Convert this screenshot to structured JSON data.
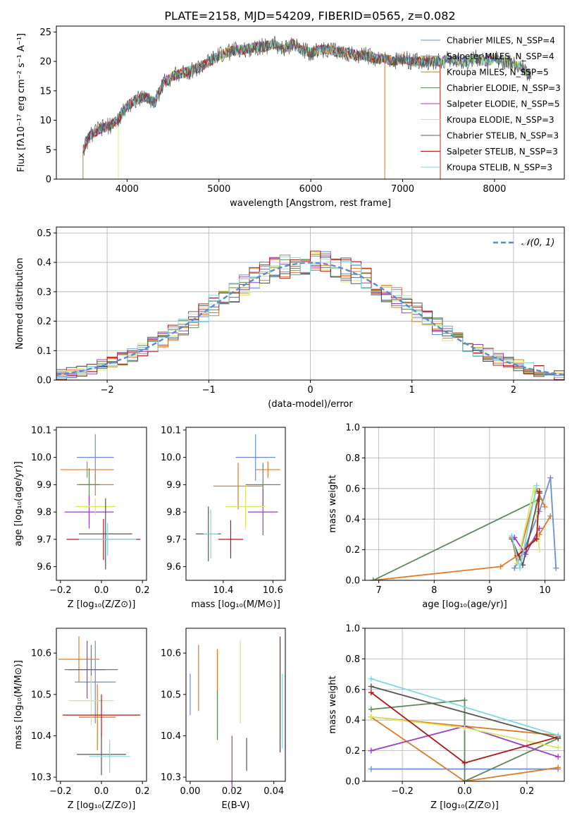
{
  "title": "PLATE=2158, MJD=54209, FIBERID=0565, z=0.082",
  "colors": {
    "series": [
      "#6a8fd8",
      "#e07b2a",
      "#d97b2a",
      "#5b8a5b",
      "#a03cc0",
      "#d8e860",
      "#555555",
      "#b01818",
      "#7fd8e0"
    ]
  },
  "chart_data": [
    {
      "type": "line",
      "title": "PLATE=2158, MJD=54209, FIBERID=0565, z=0.082",
      "xlabel": "wavelength [Angstrom, rest frame]",
      "ylabel": "Flux [fλ10⁻¹⁷ erg cm⁻² s⁻¹ A⁻¹]",
      "xlim": [
        3230,
        8760
      ],
      "ylim": [
        0,
        26
      ],
      "xticks": [
        4000,
        5000,
        6000,
        7000,
        8000
      ],
      "yticks": [
        0,
        5,
        10,
        15,
        20,
        25
      ],
      "grid": false,
      "legend": "top-right",
      "legend_entries": [
        "Chabrier MILES, N_SSP=4",
        "Salpeter MILES, N_SSP=4",
        "Kroupa MILES, N_SSP=5",
        "Chabrier ELODIE, N_SSP=3",
        "Salpeter ELODIE, N_SSP=5",
        "Kroupa ELODIE, N_SSP=3",
        "Chabrier STELIB, N_SSP=3",
        "Salpeter STELIB, N_SSP=3",
        "Kroupa STELIB, N_SSP=3"
      ],
      "spectrum_envelope": {
        "wavelength": [
          3520,
          3600,
          3700,
          3800,
          3900,
          4000,
          4100,
          4200,
          4300,
          4400,
          4500,
          4600,
          4700,
          4800,
          4900,
          5000,
          5100,
          5200,
          5300,
          5400,
          5500,
          5600,
          5700,
          5800,
          5900,
          6000,
          6100,
          6200,
          6300,
          6400,
          6500,
          6600,
          6700,
          6800,
          6900,
          7000,
          7100,
          7200,
          7300,
          7400,
          7500,
          7600,
          7700,
          7800,
          7900,
          8000,
          8100,
          8200,
          8300,
          8400
        ],
        "flux": [
          5,
          7.5,
          8.5,
          9,
          10,
          12.5,
          13.5,
          14,
          13,
          16.5,
          17.5,
          18,
          18.5,
          19,
          20,
          21,
          21.5,
          22,
          22,
          22.5,
          22.5,
          23,
          22,
          23,
          22,
          21.5,
          22,
          22,
          21.5,
          21.5,
          21,
          21,
          20.5,
          20.5,
          20,
          20.5,
          20,
          20,
          20,
          20,
          20.5,
          20,
          20,
          20.5,
          20,
          20.5,
          20,
          19.5,
          19,
          17.5
        ]
      }
    },
    {
      "type": "bar",
      "xlabel": "(data-model)/error",
      "ylabel": "Normed distribution",
      "xlim": [
        -2.5,
        2.5
      ],
      "ylim": [
        0,
        0.52
      ],
      "xticks": [
        -2,
        -1,
        0,
        1,
        2
      ],
      "yticks": [
        0.0,
        0.1,
        0.2,
        0.3,
        0.4,
        0.5
      ],
      "grid": true,
      "legend": "top-right",
      "legend_entries": [
        "𝒩(0, 1)"
      ],
      "series": [
        {
          "name": "𝒩(0, 1)",
          "x": [
            -2.5,
            -2.0,
            -1.5,
            -1.0,
            -0.5,
            0.0,
            0.5,
            1.0,
            1.5,
            2.0,
            2.5
          ],
          "values": [
            0.018,
            0.054,
            0.13,
            0.242,
            0.352,
            0.399,
            0.352,
            0.242,
            0.13,
            0.054,
            0.018
          ]
        }
      ],
      "histogram_bin_width": 0.1
    },
    {
      "type": "scatter",
      "xlabel": "Z [log₁₀(Z/Z⊙)]",
      "ylabel": "age  [log₁₀(age/yr)]",
      "xlim": [
        -0.22,
        0.22
      ],
      "ylim": [
        9.55,
        10.11
      ],
      "xticks": [
        -0.2,
        0.0,
        0.2
      ],
      "yticks": [
        9.6,
        9.7,
        9.8,
        9.9,
        10.0,
        10.1
      ],
      "grid": false,
      "points": [
        {
          "x": -0.03,
          "y": 10.0,
          "xerr": 0.09,
          "yerr": 0.085
        },
        {
          "x": -0.07,
          "y": 9.955,
          "xerr": 0.13,
          "yerr": 0.03
        },
        {
          "x": -0.03,
          "y": 9.9,
          "xerr": 0.09,
          "yerr": 0.04
        },
        {
          "x": -0.06,
          "y": 9.9,
          "xerr": 0.05,
          "yerr": 0.06
        },
        {
          "x": -0.06,
          "y": 9.8,
          "xerr": 0.12,
          "yerr": 0.06
        },
        {
          "x": -0.03,
          "y": 9.82,
          "xerr": 0.1,
          "yerr": 0.03
        },
        {
          "x": 0.02,
          "y": 9.72,
          "xerr": 0.13,
          "yerr": 0.13
        },
        {
          "x": 0.01,
          "y": 9.7,
          "xerr": 0.18,
          "yerr": 0.075
        },
        {
          "x": 0.03,
          "y": 9.7,
          "xerr": 0.14,
          "yerr": 0.06
        }
      ]
    },
    {
      "type": "scatter",
      "xlabel": "mass [log₁₀(M/M⊙)]",
      "ylabel": "",
      "xlim": [
        10.25,
        10.65
      ],
      "ylim": [
        9.55,
        10.11
      ],
      "xticks": [
        10.4,
        10.6
      ],
      "yticks": [
        9.6,
        9.7,
        9.8,
        9.9,
        10.0,
        10.1
      ],
      "grid": false,
      "points": [
        {
          "x": 10.53,
          "y": 10.0,
          "xerr": 0.08,
          "yerr": 0.085
        },
        {
          "x": 10.58,
          "y": 9.955,
          "xerr": 0.05,
          "yerr": 0.03
        },
        {
          "x": 10.46,
          "y": 9.895,
          "xerr": 0.1,
          "yerr": 0.085
        },
        {
          "x": 10.56,
          "y": 9.9,
          "xerr": 0.07,
          "yerr": 0.08
        },
        {
          "x": 10.56,
          "y": 9.8,
          "xerr": 0.06,
          "yerr": 0.085
        },
        {
          "x": 10.49,
          "y": 9.82,
          "xerr": 0.08,
          "yerr": 0.08
        },
        {
          "x": 10.34,
          "y": 9.72,
          "xerr": 0.05,
          "yerr": 0.1
        },
        {
          "x": 10.43,
          "y": 9.7,
          "xerr": 0.05,
          "yerr": 0.07
        },
        {
          "x": 10.35,
          "y": 9.72,
          "xerr": 0.03,
          "yerr": 0.09
        }
      ]
    },
    {
      "type": "line",
      "xlabel": "age  [log₁₀(age/yr)]",
      "ylabel": "mass weight",
      "xlim": [
        6.75,
        10.35
      ],
      "ylim": [
        0,
        1
      ],
      "xticks": [
        7,
        8,
        9,
        10
      ],
      "yticks": [
        0.0,
        0.2,
        0.4,
        0.6,
        0.8,
        1.0
      ],
      "grid": true,
      "series": [
        {
          "x": [
            9.45,
            9.6,
            9.9,
            10.1,
            10.2
          ],
          "values": [
            0.08,
            0.18,
            0.45,
            0.67,
            0.08
          ]
        },
        {
          "x": [
            6.9,
            9.2,
            9.5,
            9.9,
            10.1
          ],
          "values": [
            0.0,
            0.09,
            0.16,
            0.3,
            0.42
          ]
        },
        {
          "x": [
            9.4,
            9.5,
            9.85,
            10.0
          ],
          "values": [
            0.28,
            0.11,
            0.6,
            0.48
          ]
        },
        {
          "x": [
            6.9,
            9.9
          ],
          "values": [
            0.0,
            0.53
          ]
        },
        {
          "x": [
            9.45,
            9.65,
            9.9
          ],
          "values": [
            0.28,
            0.17,
            0.34
          ]
        },
        {
          "x": [
            9.5,
            9.8,
            9.9
          ],
          "values": [
            0.11,
            0.6,
            0.2
          ]
        },
        {
          "x": [
            9.4,
            9.6,
            9.9
          ],
          "values": [
            0.27,
            0.1,
            0.57
          ]
        },
        {
          "x": [
            9.5,
            9.85,
            9.9
          ],
          "values": [
            0.16,
            0.27,
            0.58
          ]
        },
        {
          "x": [
            9.4,
            9.55,
            9.85
          ],
          "values": [
            0.29,
            0.08,
            0.62
          ]
        }
      ]
    },
    {
      "type": "scatter",
      "xlabel": "Z [log₁₀(Z/Z⊙)]",
      "ylabel": "mass [log₁₀(M/M⊙)]",
      "xlim": [
        -0.22,
        0.22
      ],
      "ylim": [
        10.29,
        10.66
      ],
      "xticks": [
        -0.2,
        0.0,
        0.2
      ],
      "yticks": [
        10.3,
        10.4,
        10.5,
        10.6
      ],
      "grid": false,
      "points": [
        {
          "x": -0.03,
          "y": 10.53,
          "xerr": 0.1,
          "yerr": 0.1
        },
        {
          "x": -0.11,
          "y": 10.585,
          "xerr": 0.1,
          "yerr": 0.055
        },
        {
          "x": -0.02,
          "y": 10.445,
          "xerr": 0.09,
          "yerr": 0.08
        },
        {
          "x": -0.05,
          "y": 10.56,
          "xerr": 0.13,
          "yerr": 0.06
        },
        {
          "x": -0.07,
          "y": 10.56,
          "xerr": 0.09,
          "yerr": 0.07
        },
        {
          "x": -0.05,
          "y": 10.485,
          "xerr": 0.11,
          "yerr": 0.06
        },
        {
          "x": 0.0,
          "y": 10.355,
          "xerr": 0.12,
          "yerr": 0.05
        },
        {
          "x": 0.0,
          "y": 10.45,
          "xerr": 0.19,
          "yerr": 0.05
        },
        {
          "x": 0.04,
          "y": 10.35,
          "xerr": 0.1,
          "yerr": 0.04
        }
      ]
    },
    {
      "type": "scatter",
      "xlabel": "E(B-V)",
      "ylabel": "",
      "xlim": [
        -0.002,
        0.0455
      ],
      "ylim": [
        10.29,
        10.66
      ],
      "xticks": [
        0.0,
        0.02,
        0.04
      ],
      "yticks": [
        10.3,
        10.4,
        10.5,
        10.6
      ],
      "grid": false,
      "points": [
        {
          "x": 0.0,
          "y": 10.5,
          "yerr": 0.05
        },
        {
          "x": 0.004,
          "y": 10.54,
          "yerr": 0.08
        },
        {
          "x": 0.013,
          "y": 10.5,
          "yerr": 0.11
        },
        {
          "x": 0.013,
          "y": 10.45,
          "yerr": 0.06
        },
        {
          "x": 0.02,
          "y": 10.33,
          "yerr": 0.07
        },
        {
          "x": 0.024,
          "y": 10.53,
          "yerr": 0.1
        },
        {
          "x": 0.027,
          "y": 10.355,
          "yerr": 0.04
        },
        {
          "x": 0.043,
          "y": 10.5,
          "yerr": 0.14
        },
        {
          "x": 0.044,
          "y": 10.46,
          "yerr": 0.09
        }
      ]
    },
    {
      "type": "line",
      "xlabel": "Z [log₁₀(Z/Z⊙)]",
      "ylabel": "mass weight",
      "xlim": [
        -0.32,
        0.32
      ],
      "ylim": [
        0,
        1
      ],
      "xticks": [
        -0.2,
        0.0,
        0.2
      ],
      "yticks": [
        0.0,
        0.2,
        0.4,
        0.6,
        0.8,
        1.0
      ],
      "grid": true,
      "series": [
        {
          "x": [
            -0.3,
            0.0,
            0.3
          ],
          "values": [
            0.08,
            0.08,
            0.08
          ]
        },
        {
          "x": [
            -0.3,
            0.0,
            0.3
          ],
          "values": [
            0.42,
            0.0,
            0.09
          ]
        },
        {
          "x": [
            -0.3,
            0.0,
            0.3
          ],
          "values": [
            0.42,
            0.36,
            0.3
          ]
        },
        {
          "x": [
            -0.3,
            0.0,
            0.0,
            0.3
          ],
          "values": [
            0.47,
            0.53,
            0.0,
            0.28
          ]
        },
        {
          "x": [
            -0.3,
            0.0,
            0.3
          ],
          "values": [
            0.2,
            0.36,
            0.16
          ]
        },
        {
          "x": [
            -0.3,
            0.0,
            0.3
          ],
          "values": [
            0.42,
            0.35,
            0.22
          ]
        },
        {
          "x": [
            -0.3,
            0.3
          ],
          "values": [
            0.62,
            0.28
          ]
        },
        {
          "x": [
            -0.3,
            0.0,
            0.3
          ],
          "values": [
            0.58,
            0.12,
            0.29
          ]
        },
        {
          "x": [
            -0.3,
            0.3
          ],
          "values": [
            0.67,
            0.3
          ]
        }
      ]
    }
  ]
}
